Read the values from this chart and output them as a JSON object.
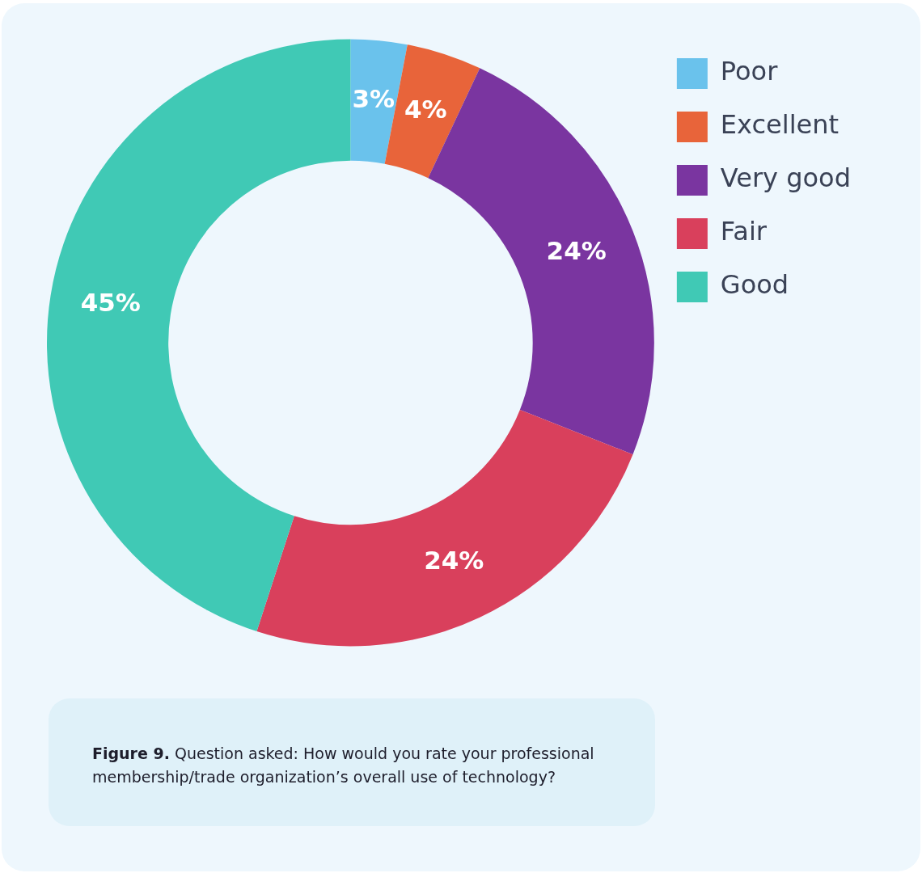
{
  "chart_data": {
    "type": "donut",
    "categories": [
      "Poor",
      "Excellent",
      "Very good",
      "Fair",
      "Good"
    ],
    "values": [
      3,
      4,
      24,
      24,
      45
    ],
    "colors": [
      "#6ac2ec",
      "#e8643a",
      "#7a35a0",
      "#d9405c",
      "#40c9b5"
    ],
    "value_labels": [
      "3%",
      "4%",
      "24%",
      "24%",
      "45%"
    ],
    "legend": "top right",
    "annotations": [
      "Figure 9. Question asked: How would you rate your professional membership/trade organization’s overall use of technology?"
    ]
  }
}
